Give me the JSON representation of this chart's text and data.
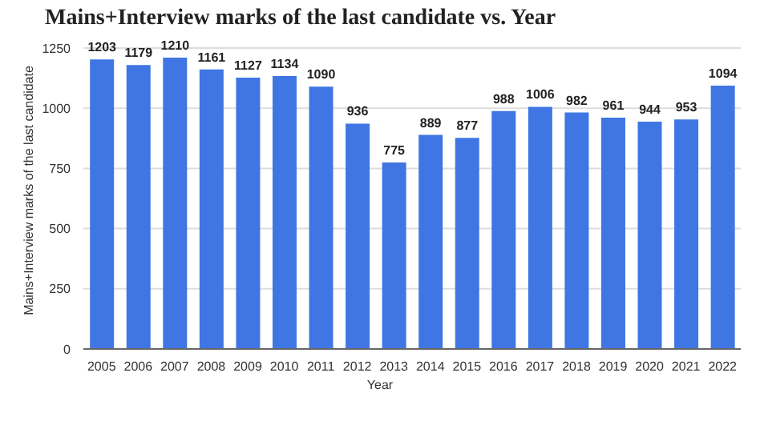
{
  "chart_data": {
    "type": "bar",
    "title": "Mains+Interview marks of the last candidate vs. Year",
    "xlabel": "Year",
    "ylabel": "Mains+Interview marks of the last candidate",
    "categories": [
      "2005",
      "2006",
      "2007",
      "2008",
      "2009",
      "2010",
      "2011",
      "2012",
      "2013",
      "2014",
      "2015",
      "2016",
      "2017",
      "2018",
      "2019",
      "2020",
      "2021",
      "2022"
    ],
    "values": [
      1203,
      1179,
      1210,
      1161,
      1127,
      1134,
      1090,
      936,
      775,
      889,
      877,
      988,
      1006,
      982,
      961,
      944,
      953,
      1094
    ],
    "color": "#3f76e4",
    "ylim": [
      0,
      1250
    ],
    "yticks": [
      0,
      250,
      500,
      750,
      1000,
      1250
    ],
    "grid": "y",
    "data_labels": true
  }
}
